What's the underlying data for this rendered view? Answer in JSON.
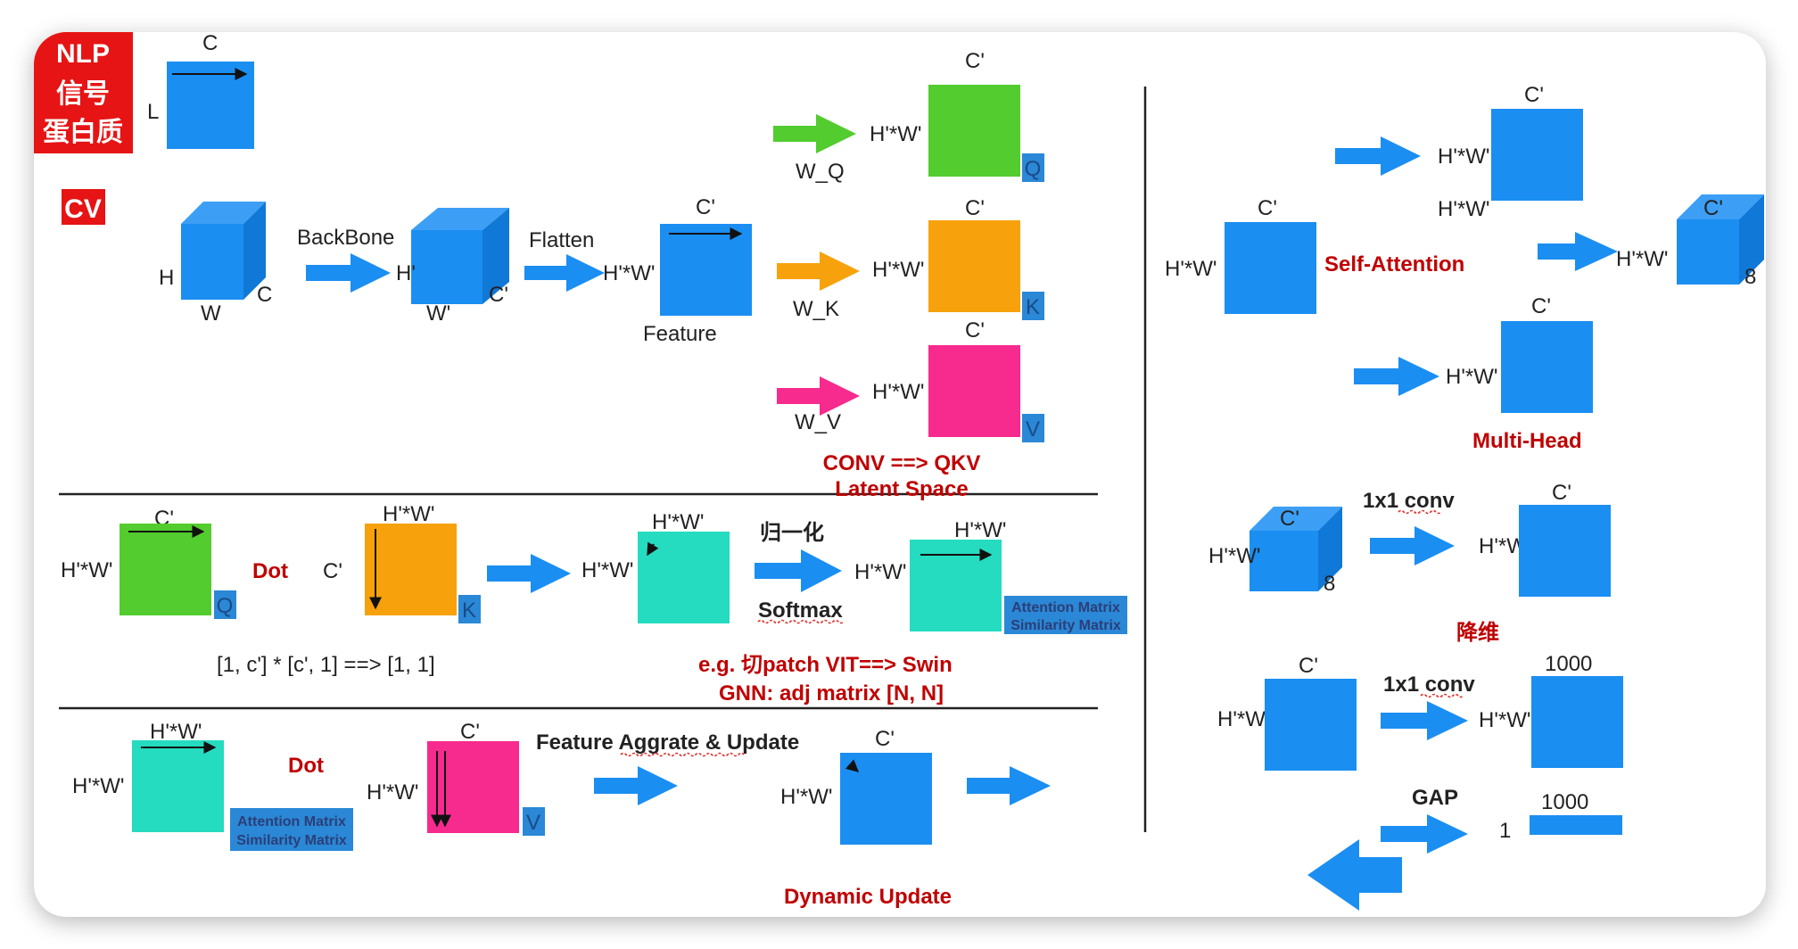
{
  "colors": {
    "blue": "#1b8ef2",
    "green": "#52cc2e",
    "orange": "#f7a20c",
    "pink": "#f72a8e",
    "teal": "#25dbc0",
    "red_text": "#c00000",
    "badge_bg": "#e61414"
  },
  "badges": {
    "nlp": "NLP",
    "signal": "信号",
    "protein": "蛋白质",
    "cv": "CV"
  },
  "nlp": {
    "c": "C",
    "l": "L"
  },
  "cv_row": {
    "h": "H",
    "w": "W",
    "c": "C",
    "backbone": "BackBone",
    "h_prime": "H'",
    "w_prime": "W'",
    "c_prime": "C'",
    "flatten": "Flatten",
    "hw": "H'*W'",
    "feature_c": "C'",
    "feature": "Feature"
  },
  "qkv": {
    "wq": "W_Q",
    "wk": "W_K",
    "wv": "W_V",
    "hw": "H'*W'",
    "c": "C'",
    "q": "Q",
    "k": "K",
    "v": "V",
    "title1": "CONV ==> QKV",
    "title2": "Latent Space"
  },
  "attention": {
    "q_c": "C'",
    "q_hw": "H'*W'",
    "q_tag": "Q",
    "dot": "Dot",
    "k_c": "C'",
    "k_hw": "H'*W'",
    "k_tag": "K",
    "s_hw_top": "H'*W'",
    "s_hw_left": "H'*W'",
    "norm": "归一化",
    "softmax": "Softmax",
    "m_hw_top": "H'*W'",
    "m_hw_left": "H'*W'",
    "matrix1": "Attention Matrix",
    "matrix2": "Similarity Matrix",
    "formula": "[1, c'] * [c', 1] ==> [1, 1]",
    "example1": "e.g. 切patch VIT==> Swin",
    "example2": "GNN: adj matrix [N, N]"
  },
  "update": {
    "a_hw_top": "H'*W'",
    "a_hw_left": "H'*W'",
    "matrix1": "Attention Matrix",
    "matrix2": "Similarity Matrix",
    "dot": "Dot",
    "v_c": "C'",
    "v_hw": "H'*W'",
    "v_tag": "V",
    "aggr": "Feature Aggrate & Update",
    "out_c": "C'",
    "out_hw": "H'*W'",
    "title": "Dynamic Update"
  },
  "right": {
    "sa_c": "C'",
    "sa_hw": "H'*W'",
    "self_attention": "Self-Attention",
    "r1_c": "C'",
    "r1_hw1": "H'*W'",
    "r1_hw2": "H'*W'",
    "cube_c": "C'",
    "cube_hw": "H'*W'",
    "cube_8": "8",
    "mh_c": "C'",
    "mh_hw": "H'*W'",
    "multi_head": "Multi-Head",
    "cube2_c": "C'",
    "cube2_hw": "H'*W'",
    "cube2_8": "8",
    "conv1": "1x1 conv",
    "red_c": "C'",
    "red_hw": "H'*W'",
    "reduce": "降维",
    "in_c": "C'",
    "in_hw": "H'*W'",
    "conv2": "1x1 conv",
    "out_1000": "1000",
    "out_hw": "H'*W'",
    "gap": "GAP",
    "vec_1": "1",
    "vec_1000": "1000"
  }
}
